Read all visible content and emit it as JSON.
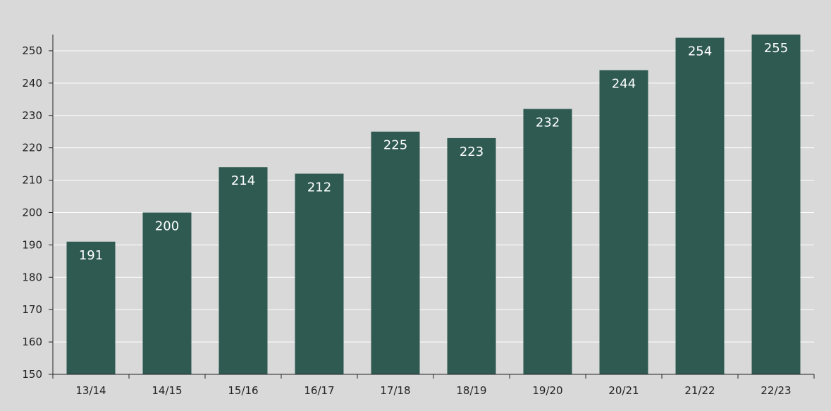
{
  "chart_data": {
    "type": "bar",
    "title": "",
    "xlabel": "",
    "ylabel": "",
    "categories": [
      "13/14",
      "14/15",
      "15/16",
      "16/17",
      "17/18",
      "18/19",
      "19/20",
      "20/21",
      "21/22",
      "22/23"
    ],
    "values": [
      191,
      200,
      214,
      212,
      225,
      223,
      232,
      244,
      254,
      255
    ],
    "ylim": [
      150,
      255
    ],
    "yticks": [
      150,
      160,
      170,
      180,
      190,
      200,
      210,
      220,
      230,
      240,
      250
    ],
    "grid": true,
    "legend": "none",
    "colors": {
      "bar": "#2e5a51",
      "background": "#d9d9d9",
      "grid": "#ffffff",
      "axis": "#222222",
      "label": "#ffffff"
    }
  }
}
